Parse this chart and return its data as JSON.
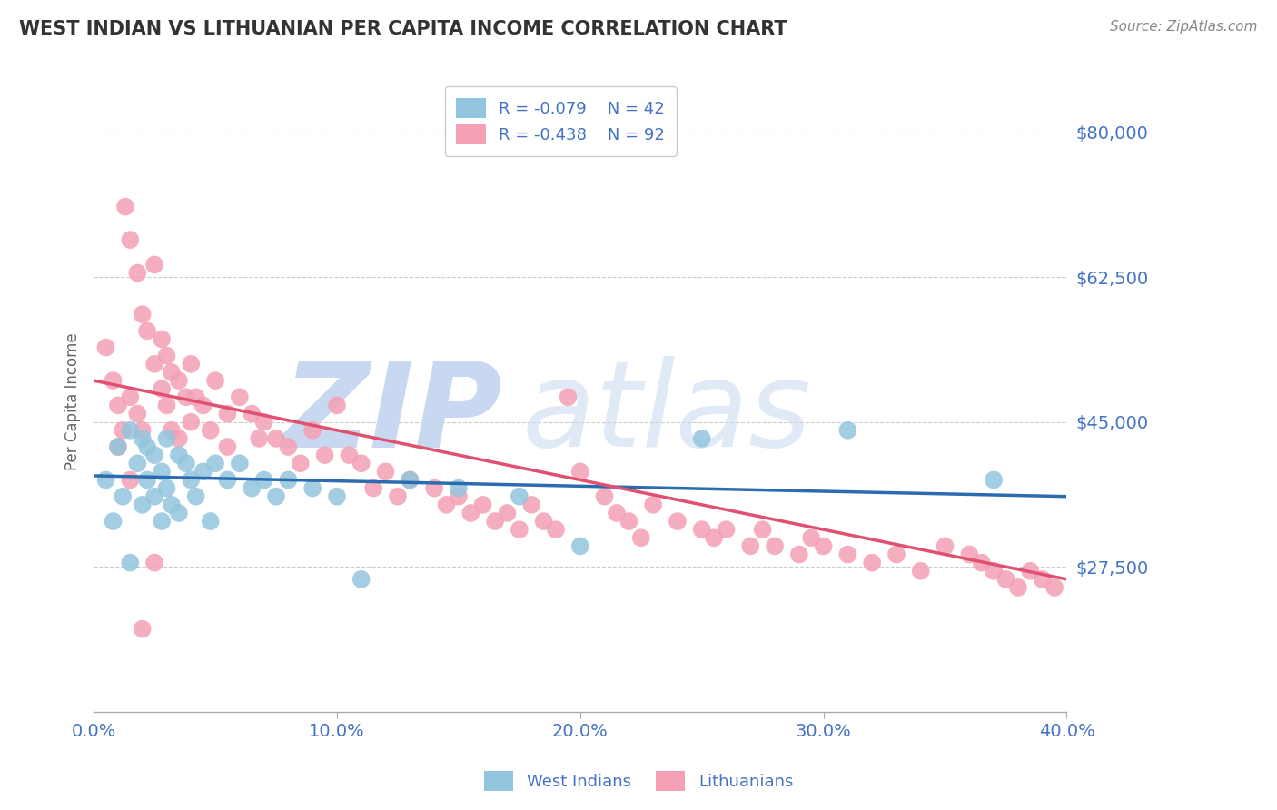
{
  "title": "WEST INDIAN VS LITHUANIAN PER CAPITA INCOME CORRELATION CHART",
  "source_text": "Source: ZipAtlas.com",
  "ylabel": "Per Capita Income",
  "xlabel": "",
  "xlim": [
    0.0,
    0.4
  ],
  "ylim": [
    10000,
    85000
  ],
  "yticks": [
    27500,
    45000,
    62500,
    80000
  ],
  "ytick_labels": [
    "$27,500",
    "$45,000",
    "$62,500",
    "$80,000"
  ],
  "xticks": [
    0.0,
    0.1,
    0.2,
    0.3,
    0.4
  ],
  "xtick_labels": [
    "0.0%",
    "10.0%",
    "20.0%",
    "30.0%",
    "40.0%"
  ],
  "grid_color": "#cccccc",
  "background_color": "#ffffff",
  "title_color": "#333333",
  "axis_color": "#4472c4",
  "watermark_zip": "ZIP",
  "watermark_atlas": "atlas",
  "watermark_color": "#c8d8f0",
  "legend_r1": "R = -0.079",
  "legend_n1": "N = 42",
  "legend_r2": "R = -0.438",
  "legend_n2": "N = 92",
  "series1_color": "#92c5de",
  "series2_color": "#f4a0b5",
  "line1_color": "#2b6cb0",
  "line2_color": "#e05070",
  "series1_name": "West Indians",
  "series2_name": "Lithuanians",
  "west_indian_x": [
    0.005,
    0.008,
    0.01,
    0.012,
    0.015,
    0.015,
    0.018,
    0.02,
    0.02,
    0.022,
    0.022,
    0.025,
    0.025,
    0.028,
    0.028,
    0.03,
    0.03,
    0.032,
    0.035,
    0.035,
    0.038,
    0.04,
    0.042,
    0.045,
    0.048,
    0.05,
    0.055,
    0.06,
    0.065,
    0.07,
    0.075,
    0.08,
    0.09,
    0.1,
    0.11,
    0.13,
    0.15,
    0.175,
    0.2,
    0.25,
    0.31,
    0.37
  ],
  "west_indian_y": [
    38000,
    33000,
    42000,
    36000,
    44000,
    28000,
    40000,
    43000,
    35000,
    42000,
    38000,
    41000,
    36000,
    39000,
    33000,
    43000,
    37000,
    35000,
    41000,
    34000,
    40000,
    38000,
    36000,
    39000,
    33000,
    40000,
    38000,
    40000,
    37000,
    38000,
    36000,
    38000,
    37000,
    36000,
    26000,
    38000,
    37000,
    36000,
    30000,
    43000,
    44000,
    38000
  ],
  "lithuanian_x": [
    0.005,
    0.008,
    0.01,
    0.012,
    0.013,
    0.015,
    0.015,
    0.018,
    0.018,
    0.02,
    0.02,
    0.022,
    0.025,
    0.025,
    0.028,
    0.028,
    0.03,
    0.03,
    0.032,
    0.032,
    0.035,
    0.035,
    0.038,
    0.04,
    0.04,
    0.042,
    0.045,
    0.048,
    0.05,
    0.055,
    0.055,
    0.06,
    0.065,
    0.068,
    0.07,
    0.075,
    0.08,
    0.085,
    0.09,
    0.095,
    0.1,
    0.105,
    0.11,
    0.115,
    0.12,
    0.125,
    0.13,
    0.14,
    0.145,
    0.15,
    0.155,
    0.16,
    0.165,
    0.17,
    0.175,
    0.18,
    0.185,
    0.19,
    0.195,
    0.2,
    0.21,
    0.215,
    0.22,
    0.225,
    0.23,
    0.24,
    0.25,
    0.255,
    0.26,
    0.27,
    0.275,
    0.28,
    0.29,
    0.295,
    0.3,
    0.31,
    0.32,
    0.33,
    0.34,
    0.35,
    0.36,
    0.365,
    0.37,
    0.375,
    0.38,
    0.385,
    0.39,
    0.395,
    0.01,
    0.015,
    0.02,
    0.025
  ],
  "lithuanian_y": [
    54000,
    50000,
    47000,
    44000,
    71000,
    67000,
    48000,
    63000,
    46000,
    58000,
    44000,
    56000,
    64000,
    52000,
    55000,
    49000,
    53000,
    47000,
    51000,
    44000,
    50000,
    43000,
    48000,
    52000,
    45000,
    48000,
    47000,
    44000,
    50000,
    46000,
    42000,
    48000,
    46000,
    43000,
    45000,
    43000,
    42000,
    40000,
    44000,
    41000,
    47000,
    41000,
    40000,
    37000,
    39000,
    36000,
    38000,
    37000,
    35000,
    36000,
    34000,
    35000,
    33000,
    34000,
    32000,
    35000,
    33000,
    32000,
    48000,
    39000,
    36000,
    34000,
    33000,
    31000,
    35000,
    33000,
    32000,
    31000,
    32000,
    30000,
    32000,
    30000,
    29000,
    31000,
    30000,
    29000,
    28000,
    29000,
    27000,
    30000,
    29000,
    28000,
    27000,
    26000,
    25000,
    27000,
    26000,
    25000,
    42000,
    38000,
    20000,
    28000
  ]
}
